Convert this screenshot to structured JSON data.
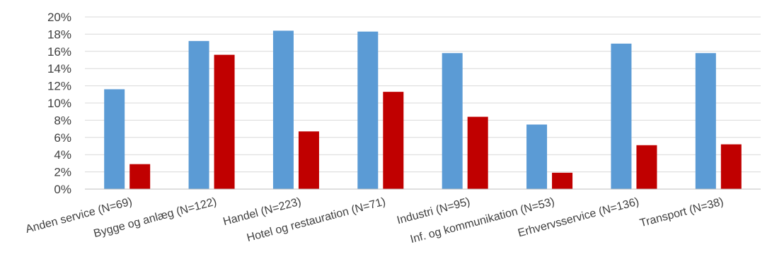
{
  "chart_data": {
    "type": "bar",
    "categories": [
      "Anden service (N=69)",
      "Bygge og anlæg (N=122)",
      "Handel (N=223)",
      "Hotel og restauration (N=71)",
      "Industri (N=95)",
      "Inf. og kommunikation (N=53)",
      "Erhvervsservice (N=136)",
      "Transport (N=38)"
    ],
    "series": [
      {
        "color": "#5b9bd5",
        "values": [
          11.6,
          17.2,
          18.4,
          18.3,
          15.8,
          7.5,
          16.9,
          15.8
        ]
      },
      {
        "color": "#c00000",
        "values": [
          2.9,
          15.6,
          6.7,
          11.3,
          8.4,
          1.9,
          5.1,
          5.2
        ]
      }
    ],
    "yticks": [
      "0%",
      "2%",
      "4%",
      "6%",
      "8%",
      "10%",
      "12%",
      "14%",
      "16%",
      "18%",
      "20%"
    ],
    "ylim": [
      0,
      20
    ],
    "y_unit": "%",
    "grid": true,
    "legend": "none",
    "title": "",
    "xlabel": "",
    "ylabel": ""
  }
}
